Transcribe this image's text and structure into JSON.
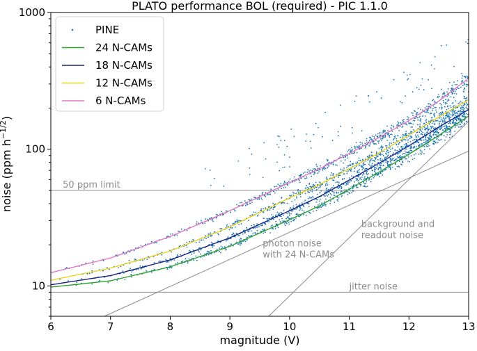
{
  "chart_data": {
    "type": "scatter",
    "title": "PLATO performance BOL (required) - PIC 1.1.0",
    "xlabel": "magnitude (V)",
    "ylabel_main": "noise (ppm h",
    "ylabel_sup": "−1/2",
    "ylabel_end": ")",
    "xlim": [
      6,
      13
    ],
    "ylim": [
      6,
      1000
    ],
    "yscale": "log",
    "x_ticks": [
      6,
      7,
      8,
      9,
      10,
      11,
      12,
      13
    ],
    "x_tick_labels": [
      "6",
      "7",
      "8",
      "9",
      "10",
      "11",
      "12",
      "13"
    ],
    "y_ticks": [
      10,
      100,
      1000
    ],
    "y_tick_labels": [
      "10",
      "100",
      "1000"
    ],
    "legend_position": "top-left",
    "series": [
      {
        "name": "PINE",
        "kind": "scatter",
        "color": "#1f77b4",
        "bands": [
          {
            "n_cams": 24,
            "x": [
              6.0,
              7.0,
              8.0,
              9.0,
              10.0,
              10.5,
              11.0,
              11.5,
              12.0,
              12.5,
              13.0
            ],
            "y": [
              9.8,
              10.9,
              13.8,
              19.5,
              30.5,
              38.5,
              51.0,
              68.0,
              92.0,
              126.0,
              175.0
            ]
          },
          {
            "n_cams": 18,
            "x": [
              6.0,
              7.0,
              8.0,
              9.0,
              10.0,
              10.5,
              11.0,
              11.5,
              12.0,
              12.5,
              13.0
            ],
            "y": [
              10.2,
              11.9,
              15.5,
              22.5,
              35.5,
              45.0,
              59.5,
              79.0,
              106.0,
              145.0,
              195.0
            ]
          },
          {
            "n_cams": 12,
            "x": [
              6.0,
              7.0,
              8.0,
              9.0,
              10.0,
              10.5,
              11.0,
              11.5,
              12.0,
              12.5,
              13.0
            ],
            "y": [
              11.0,
              13.5,
              18.0,
              27.0,
              44.0,
              55.0,
              72.0,
              94.0,
              127.0,
              172.0,
              230.0
            ]
          },
          {
            "n_cams": 6,
            "x": [
              6.0,
              7.0,
              8.0,
              9.0,
              10.0,
              10.5,
              11.0,
              11.5,
              12.0,
              12.5,
              13.0
            ],
            "y": [
              12.5,
              16.0,
              23.0,
              35.5,
              57.0,
              72.0,
              93.0,
              122.0,
              162.0,
              225.0,
              330.0
            ]
          }
        ]
      },
      {
        "name": "24 N-CAMs",
        "kind": "line",
        "color": "#2ca02c",
        "x": [
          6.0,
          7.0,
          8.0,
          9.0,
          10.0,
          10.5,
          11.0,
          11.5,
          12.0,
          12.5,
          13.0
        ],
        "y": [
          9.8,
          10.9,
          13.8,
          19.5,
          30.5,
          38.5,
          51.0,
          68.0,
          92.0,
          126.0,
          175.0
        ]
      },
      {
        "name": "18 N-CAMs",
        "kind": "line",
        "color": "#1a237e",
        "x": [
          6.0,
          7.0,
          8.0,
          9.0,
          10.0,
          10.5,
          11.0,
          11.5,
          12.0,
          12.5,
          13.0
        ],
        "y": [
          10.2,
          11.9,
          15.5,
          22.5,
          35.5,
          45.0,
          59.5,
          79.0,
          106.0,
          145.0,
          195.0
        ]
      },
      {
        "name": "12 N-CAMs",
        "kind": "line",
        "color": "#e8d21d",
        "x": [
          6.0,
          7.0,
          8.0,
          9.0,
          10.0,
          10.5,
          11.0,
          11.5,
          12.0,
          12.5,
          13.0
        ],
        "y": [
          11.0,
          13.5,
          18.0,
          27.0,
          44.0,
          55.0,
          72.0,
          94.0,
          127.0,
          172.0,
          230.0
        ]
      },
      {
        "name": "6 N-CAMs",
        "kind": "line",
        "color": "#e377c2",
        "x": [
          6.0,
          7.0,
          8.0,
          9.0,
          10.0,
          10.5,
          11.0,
          11.5,
          12.0,
          12.5,
          13.0
        ],
        "y": [
          12.5,
          16.0,
          23.0,
          35.5,
          57.0,
          72.0,
          93.0,
          122.0,
          162.0,
          225.0,
          330.0
        ]
      }
    ],
    "reference_lines": [
      {
        "name": "50-ppm-limit",
        "kind": "hline",
        "y": 50,
        "label": "50 ppm limit",
        "label_x": 6.2
      },
      {
        "name": "jitter-noise",
        "kind": "hline",
        "y": 9,
        "label": "jitter noise",
        "label_x": 11.0
      },
      {
        "name": "photon-noise",
        "kind": "line",
        "x": [
          6.9,
          13.0
        ],
        "y": [
          6.0,
          97.0
        ],
        "label": "photon noise\nwith 24 N-CAMs",
        "label_x": 9.55,
        "label_y": 19.5
      },
      {
        "name": "background-readout-noise",
        "kind": "line",
        "x": [
          9.65,
          13.0
        ],
        "y": [
          6.0,
          160.0
        ],
        "label": "background and\nreadout noise",
        "label_x": 11.2,
        "label_y": 27.0
      }
    ],
    "colors": {
      "reference": "#8c8c8c",
      "axis": "#000000"
    }
  }
}
